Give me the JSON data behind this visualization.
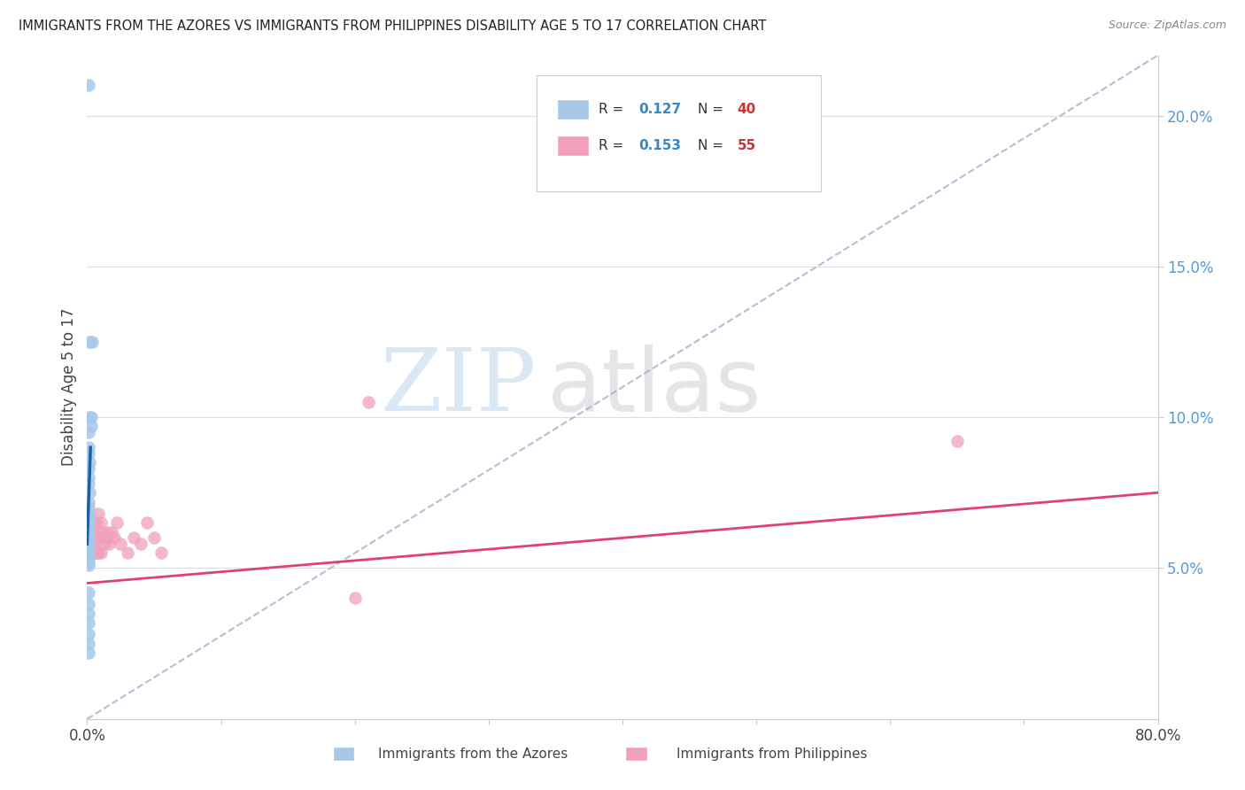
{
  "title": "IMMIGRANTS FROM THE AZORES VS IMMIGRANTS FROM PHILIPPINES DISABILITY AGE 5 TO 17 CORRELATION CHART",
  "source": "Source: ZipAtlas.com",
  "ylabel": "Disability Age 5 to 17",
  "xlim": [
    0,
    0.8
  ],
  "ylim": [
    0,
    0.22
  ],
  "azores_label": "Immigrants from the Azores",
  "philippines_label": "Immigrants from Philippines",
  "azores_R": "0.127",
  "azores_N": "40",
  "philippines_R": "0.153",
  "philippines_N": "55",
  "azores_color": "#a8c8e8",
  "azores_line_color": "#2060a0",
  "philippines_color": "#f0a0b8",
  "philippines_line_color": "#e04070",
  "ref_line_color": "#aaaacc",
  "background_color": "#ffffff",
  "grid_color": "#dddddd",
  "azores_x": [
    0.002,
    0.004,
    0.002,
    0.003,
    0.003,
    0.001,
    0.001,
    0.001,
    0.002,
    0.001,
    0.001,
    0.001,
    0.002,
    0.001,
    0.001,
    0.001,
    0.001,
    0.001,
    0.001,
    0.001,
    0.001,
    0.001,
    0.001,
    0.001,
    0.001,
    0.001,
    0.001,
    0.001,
    0.001,
    0.001,
    0.001,
    0.001,
    0.001,
    0.001,
    0.001,
    0.001,
    0.001,
    0.001,
    0.001,
    0.001
  ],
  "azores_y": [
    0.125,
    0.125,
    0.1,
    0.1,
    0.097,
    0.095,
    0.09,
    0.088,
    0.085,
    0.083,
    0.08,
    0.078,
    0.075,
    0.072,
    0.07,
    0.068,
    0.066,
    0.065,
    0.064,
    0.063,
    0.062,
    0.061,
    0.06,
    0.059,
    0.058,
    0.057,
    0.056,
    0.055,
    0.054,
    0.053,
    0.052,
    0.051,
    0.042,
    0.038,
    0.035,
    0.032,
    0.028,
    0.025,
    0.022,
    0.21
  ],
  "philippines_x": [
    0.001,
    0.001,
    0.001,
    0.001,
    0.001,
    0.001,
    0.001,
    0.001,
    0.002,
    0.002,
    0.002,
    0.002,
    0.002,
    0.002,
    0.003,
    0.003,
    0.003,
    0.003,
    0.004,
    0.004,
    0.004,
    0.004,
    0.005,
    0.005,
    0.005,
    0.006,
    0.006,
    0.007,
    0.007,
    0.007,
    0.008,
    0.008,
    0.008,
    0.009,
    0.01,
    0.01,
    0.011,
    0.012,
    0.013,
    0.014,
    0.015,
    0.016,
    0.018,
    0.02,
    0.022,
    0.025,
    0.03,
    0.035,
    0.04,
    0.045,
    0.05,
    0.055,
    0.2,
    0.21,
    0.65
  ],
  "philippines_y": [
    0.055,
    0.055,
    0.055,
    0.056,
    0.056,
    0.057,
    0.058,
    0.06,
    0.055,
    0.056,
    0.057,
    0.058,
    0.06,
    0.062,
    0.055,
    0.056,
    0.058,
    0.06,
    0.055,
    0.056,
    0.058,
    0.062,
    0.055,
    0.058,
    0.065,
    0.055,
    0.062,
    0.055,
    0.06,
    0.065,
    0.055,
    0.06,
    0.068,
    0.06,
    0.055,
    0.065,
    0.062,
    0.06,
    0.058,
    0.06,
    0.062,
    0.058,
    0.062,
    0.06,
    0.065,
    0.058,
    0.055,
    0.06,
    0.058,
    0.065,
    0.06,
    0.055,
    0.04,
    0.105,
    0.092
  ],
  "azores_trend_x": [
    0.0,
    0.0025
  ],
  "azores_trend_y_start": 0.058,
  "azores_trend_y_end": 0.09,
  "philippines_trend_x": [
    0.0,
    0.8
  ],
  "philippines_trend_y_start": 0.045,
  "philippines_trend_y_end": 0.075
}
